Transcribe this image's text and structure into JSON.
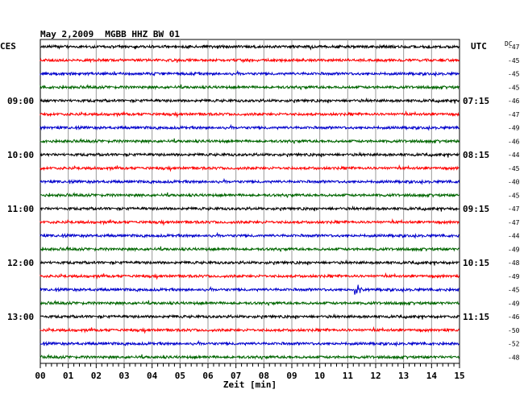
{
  "header": {
    "date": "May 2,2009",
    "station": "MGBB HHZ BW 01",
    "left_zone": "CES",
    "right_zone": "UTC",
    "dc_label": "DC"
  },
  "chart_data": {
    "type": "line",
    "title": "May 2,2009   MGBB HHZ BW 01",
    "xlabel": "Zeit [min]",
    "xlim": [
      0,
      15
    ],
    "x_ticks": [
      "00",
      "01",
      "02",
      "03",
      "04",
      "05",
      "06",
      "07",
      "08",
      "09",
      "10",
      "11",
      "12",
      "13",
      "14",
      "15"
    ],
    "grid": true,
    "trace_colors": [
      "#000000",
      "#ff0000",
      "#0000cc",
      "#006600"
    ],
    "left_hour_labels": [
      {
        "trace": 4,
        "label": "09:00"
      },
      {
        "trace": 8,
        "label": "10:00"
      },
      {
        "trace": 12,
        "label": "11:00"
      },
      {
        "trace": 16,
        "label": "12:00"
      },
      {
        "trace": 20,
        "label": "13:00"
      }
    ],
    "right_time_labels": [
      {
        "trace": 4,
        "label": "07:15"
      },
      {
        "trace": 8,
        "label": "08:15"
      },
      {
        "trace": 12,
        "label": "09:15"
      },
      {
        "trace": 16,
        "label": "10:15"
      },
      {
        "trace": 20,
        "label": "11:15"
      }
    ],
    "dc_offsets": [
      "-47",
      "-45",
      "-45",
      "-45",
      "-46",
      "-47",
      "-49",
      "-46",
      "-44",
      "-45",
      "-40",
      "-45",
      "-47",
      "-47",
      "-44",
      "-49",
      "-48",
      "-49",
      "-45",
      "-49",
      "-46",
      "-50",
      "-52",
      "-48"
    ],
    "events": [
      {
        "trace": 18,
        "minute": 11.25,
        "note": "local event burst"
      }
    ]
  }
}
